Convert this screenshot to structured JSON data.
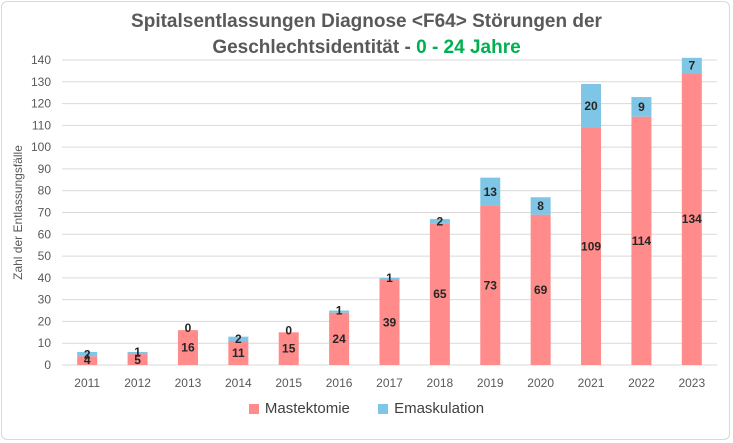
{
  "chart_data": {
    "type": "bar",
    "stacked": true,
    "title_line1": "Spitalsentlassungen Diagnose <F64> Störungen der",
    "title_line2_prefix": "Geschlechtsidentität - ",
    "title_line2_highlight": "0 - 24 Jahre",
    "ylabel": "Zahl der Entlassungsfälle",
    "xlabel": "",
    "categories": [
      "2011",
      "2012",
      "2013",
      "2014",
      "2015",
      "2016",
      "2017",
      "2018",
      "2019",
      "2020",
      "2021",
      "2022",
      "2023"
    ],
    "series": [
      {
        "name": "Mastektomie",
        "color": "#ff8b8b",
        "values": [
          4,
          5,
          16,
          11,
          15,
          24,
          39,
          65,
          73,
          69,
          109,
          114,
          134
        ]
      },
      {
        "name": "Emaskulation",
        "color": "#7fc6e6",
        "values": [
          2,
          1,
          0,
          2,
          0,
          1,
          1,
          2,
          13,
          8,
          20,
          9,
          7
        ]
      }
    ],
    "ylim": [
      0,
      140
    ],
    "yticks": [
      0,
      10,
      20,
      30,
      40,
      50,
      60,
      70,
      80,
      90,
      100,
      110,
      120,
      130,
      140
    ],
    "grid": true,
    "legend_position": "bottom",
    "title_highlight_color": "#00b050"
  }
}
